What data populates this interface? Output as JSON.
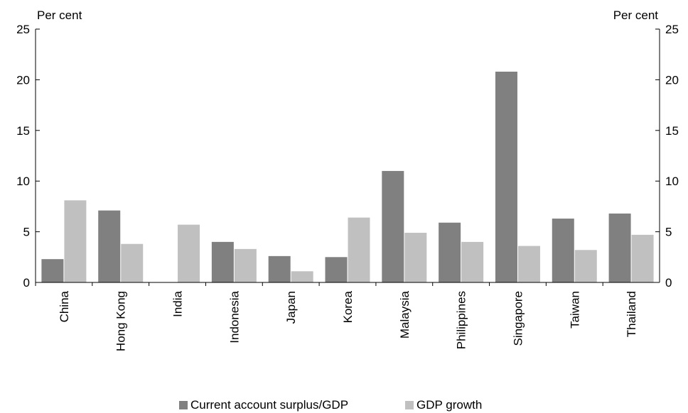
{
  "chart_data": {
    "type": "bar",
    "y_unit_left": "Per cent",
    "y_unit_right": "Per cent",
    "categories": [
      "China",
      "Hong Kong",
      "India",
      "Indonesia",
      "Japan",
      "Korea",
      "Malaysia",
      "Philippines",
      "Singapore",
      "Taiwan",
      "Thailand"
    ],
    "series": [
      {
        "name": "Current account surplus/GDP",
        "color": "#808080",
        "values": [
          2.3,
          7.1,
          0,
          4.0,
          2.6,
          2.5,
          11.0,
          5.9,
          20.8,
          6.3,
          6.8
        ]
      },
      {
        "name": "GDP growth",
        "color": "#c0c0c0",
        "values": [
          8.1,
          3.8,
          5.7,
          3.3,
          1.1,
          6.4,
          4.9,
          4.0,
          3.6,
          3.2,
          4.7
        ]
      }
    ],
    "ylim": [
      0,
      25
    ],
    "yticks": [
      0,
      5,
      10,
      15,
      20,
      25
    ],
    "grid": false,
    "legend_position": "bottom"
  }
}
